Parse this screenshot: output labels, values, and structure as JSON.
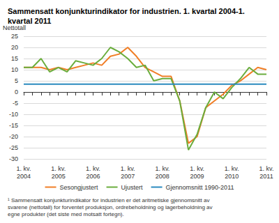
{
  "chart_data": {
    "type": "line",
    "title": "Sammensatt konjunkturindikator for industrien. 1. kvartal 2004-1. kvartal 2011",
    "y_label": "Nettotall",
    "footnote": "¹ Sammensatt konjunkturindikator for industrien er det aritmetiske gjennomsnitt av svarene (nettotall) for forventet produksjon, ordrebeholdning og lagerbeholdning av egne produkter (det siste med motsatt fortegn).",
    "categories": [
      "1. kv.\n2004",
      null,
      null,
      null,
      "1. kv.\n2005",
      null,
      null,
      null,
      "1. kv.\n2006",
      null,
      null,
      null,
      "1. kv.\n2007",
      null,
      null,
      null,
      "1. kv.\n2008",
      null,
      null,
      null,
      "1. kv.\n2009",
      null,
      null,
      null,
      "1. kv.\n2010",
      null,
      null,
      null,
      "1. kv.\n2011"
    ],
    "series": [
      {
        "name": "Sesongjustert",
        "color": "#f07e26",
        "values": [
          11,
          11,
          11,
          10,
          11,
          10,
          11,
          12,
          13,
          12,
          16,
          17,
          20,
          16,
          11,
          9,
          7,
          7,
          -4,
          -23,
          -20,
          -7,
          -4,
          -1,
          3,
          5,
          8,
          11,
          10
        ]
      },
      {
        "name": "Ujustert",
        "color": "#6aad3d",
        "values": [
          11,
          11,
          15,
          9,
          11,
          9,
          14,
          13,
          12,
          15,
          20,
          18,
          15,
          11,
          12,
          5,
          6,
          6,
          -4,
          -26,
          -19,
          -7,
          0,
          -3,
          2,
          6,
          11,
          8,
          8
        ]
      },
      {
        "name": "Gjennomsnitt 1990-2011",
        "color": "#2a8abf",
        "values": [
          3.5,
          3.5,
          3.5,
          3.5,
          3.5,
          3.5,
          3.5,
          3.5,
          3.5,
          3.5,
          3.5,
          3.5,
          3.5,
          3.5,
          3.5,
          3.5,
          3.5,
          3.5,
          3.5,
          3.5,
          3.5,
          3.5,
          3.5,
          3.5,
          3.5,
          3.5,
          3.5,
          3.5,
          3.5
        ]
      }
    ],
    "ylim": [
      -30,
      25
    ],
    "yticks": [
      -30,
      -25,
      -20,
      -15,
      -10,
      -5,
      0,
      5,
      10,
      15,
      20,
      25
    ],
    "grid": true,
    "legend": "bottom"
  }
}
